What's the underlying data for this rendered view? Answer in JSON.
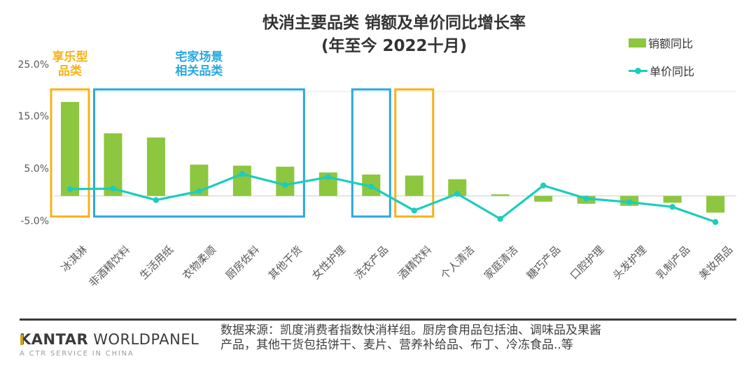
{
  "header": {
    "title": "快消主要品类 销额及单价同比增长率",
    "subtitle": "(年至今 2022十月)"
  },
  "legend": {
    "sales_label": "销额同比",
    "price_label": "单价同比"
  },
  "colors": {
    "bar_green": "#8DC63F",
    "line_teal": "#1CCDBD",
    "box_orange": "#F9B117",
    "box_blue": "#29A8E0",
    "zero_line_gray": "#d5d5d5",
    "grid_gray": "#e7e7e7",
    "axis_text_gray": "#595959",
    "title_text": "#333333"
  },
  "chart_data": {
    "type": "combo",
    "title": "快消主要品类 销额及单价同比增长率",
    "subtitle": "(年至今 2022十月)",
    "categories": [
      "冰淇淋",
      "非酒精饮料",
      "生活用纸",
      "衣物柔顺",
      "厨房佐料",
      "其他干货",
      "女性护理",
      "洗衣产品",
      "酒精饮料",
      "个人清洁",
      "家庭清洁",
      "糖巧产品",
      "口腔护理",
      "头发护理",
      "乳制产品",
      "美妆用品"
    ],
    "series": [
      {
        "name": "销额同比",
        "type": "bar",
        "color": "#8DC63F",
        "values": [
          18.0,
          12.0,
          11.2,
          6.0,
          5.8,
          5.6,
          4.5,
          4.1,
          3.9,
          3.2,
          0.3,
          -1.1,
          -1.5,
          -1.9,
          -1.3,
          -3.2
        ]
      },
      {
        "name": "单价同比",
        "type": "line",
        "color": "#1CCDBD",
        "values": [
          1.3,
          1.4,
          -0.8,
          0.9,
          4.2,
          2.1,
          3.6,
          1.8,
          -2.8,
          0.4,
          -4.4,
          2.0,
          -0.5,
          -1.2,
          -2.1,
          -5.0
        ]
      }
    ],
    "ylim": [
      -7,
      27
    ],
    "yticks": [
      {
        "value": 25,
        "label": "25.0%"
      },
      {
        "value": 15,
        "label": "15.0%"
      },
      {
        "value": 5,
        "label": "5.0%"
      },
      {
        "value": -5,
        "label": "-5.0%"
      }
    ],
    "grid": "zero-line-only",
    "legend_position": "top-right",
    "annotations": [
      {
        "label_lines": [
          "享乐型",
          "品类"
        ],
        "color": "orange",
        "from": 0,
        "to": 0
      },
      {
        "label_lines": [
          "宅家场景",
          "相关品类"
        ],
        "color": "blue",
        "from": 1,
        "to": 5
      },
      {
        "label_lines": [],
        "color": "blue",
        "from": 7,
        "to": 7
      },
      {
        "label_lines": [],
        "color": "orange",
        "from": 8,
        "to": 8
      }
    ]
  },
  "footer": {
    "logo_primary": "KANTAR",
    "logo_secondary": "WORLDPANEL",
    "logo_tagline": "A CTR SERVICE IN CHINA",
    "source_note": "数据来源：凯度消费者指数快消样组。厨房食用品包括油、调味品及果酱产品，其他干货包括饼干、麦片、营养补给品、布丁、冷冻食品..等"
  }
}
